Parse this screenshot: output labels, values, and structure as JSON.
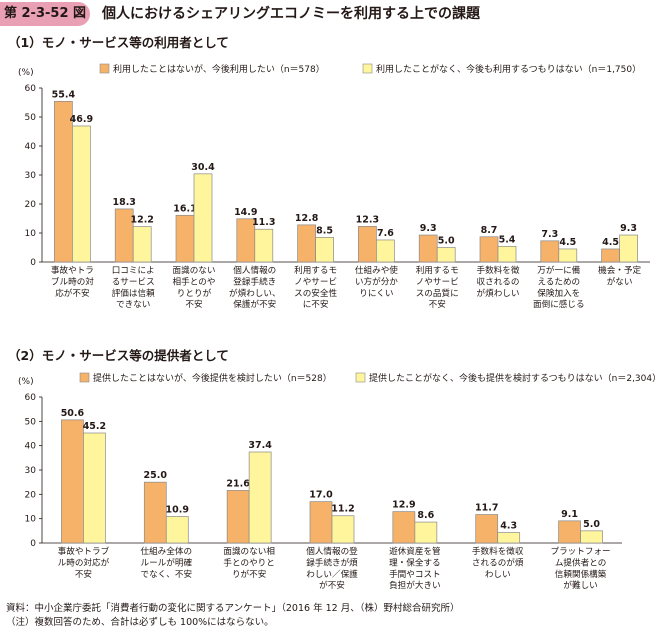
{
  "header": {
    "figure_label": "第 2-3-52 図",
    "title": "個人におけるシェアリングエコノミーを利用する上での課題"
  },
  "colors": {
    "series1": "#f7b26a",
    "series2": "#fff59d",
    "stroke": "#8a8a8a"
  },
  "chart_data": [
    {
      "type": "bar",
      "title": "（1）モノ・サービス等の利用者として",
      "unit": "(%)",
      "ylim": [
        0,
        60
      ],
      "yticks": [
        0,
        10,
        20,
        30,
        40,
        50,
        60
      ],
      "categories": [
        [
          "事故やトラ",
          "ブル時の対",
          "応が不安"
        ],
        [
          "口コミによ",
          "るサービス",
          "評価は信頼",
          "できない"
        ],
        [
          "面識のない",
          "相手とのや",
          "りとりが",
          "不安"
        ],
        [
          "個人情報の",
          "登録手続き",
          "が煩わしい、",
          "保護が不安"
        ],
        [
          "利用するモ",
          "ノやサービ",
          "スの安全性",
          "に不安"
        ],
        [
          "仕組みや使",
          "い方が分か",
          "りにくい"
        ],
        [
          "利用するモ",
          "ノやサービ",
          "スの品質に",
          "不安"
        ],
        [
          "手数料を徴",
          "収されるの",
          "が煩わしい"
        ],
        [
          "万が一に備",
          "えるための",
          "保険加入を",
          "面倒に感じる"
        ],
        [
          "機会・予定",
          "がない"
        ]
      ],
      "series": [
        {
          "name": "利用したことはないが、今後利用したい（n＝578）",
          "values": [
            55.4,
            18.3,
            16.1,
            14.9,
            12.8,
            12.3,
            9.3,
            8.7,
            7.3,
            4.5
          ]
        },
        {
          "name": "利用したことがなく、今後も利用するつもりはない（n＝1,750）",
          "values": [
            46.9,
            12.2,
            30.4,
            11.3,
            8.5,
            7.6,
            5.0,
            5.4,
            4.5,
            9.3
          ]
        }
      ]
    },
    {
      "type": "bar",
      "title": "（2）モノ・サービス等の提供者として",
      "unit": "(%)",
      "ylim": [
        0,
        60
      ],
      "yticks": [
        0,
        10,
        20,
        30,
        40,
        50,
        60
      ],
      "categories": [
        [
          "事故やトラブ",
          "ル時の対応が",
          "不安"
        ],
        [
          "仕組み全体の",
          "ルールが明確",
          "でなく、不安"
        ],
        [
          "面識のない相",
          "手とのやりと",
          "りが不安"
        ],
        [
          "個人情報の登",
          "録手続きが煩",
          "わしい／保護",
          "が不安"
        ],
        [
          "遊休資産を管",
          "理・保全する",
          "手間やコスト",
          "負担が大きい"
        ],
        [
          "手数料を徴収",
          "されるのが煩",
          "わしい"
        ],
        [
          "プラットフォー",
          "ム提供者との",
          "信頼関係構築",
          "が難しい"
        ]
      ],
      "series": [
        {
          "name": "提供したことはないが、今後提供を検討したい（n＝528）",
          "values": [
            50.6,
            25.0,
            21.6,
            17.0,
            12.9,
            11.7,
            9.1
          ]
        },
        {
          "name": "提供したことがなく、今後も提供を検討するつもりはない（n＝2,304）",
          "values": [
            45.2,
            10.9,
            37.4,
            11.2,
            8.6,
            4.3,
            5.0
          ]
        }
      ]
    }
  ],
  "footer": {
    "source": "資料：中小企業庁委託「消費者行動の変化に関するアンケート」（2016 年 12 月、（株）野村総合研究所）",
    "note": "（注）複数回答のため、合計は必ずしも 100%にはならない。"
  }
}
